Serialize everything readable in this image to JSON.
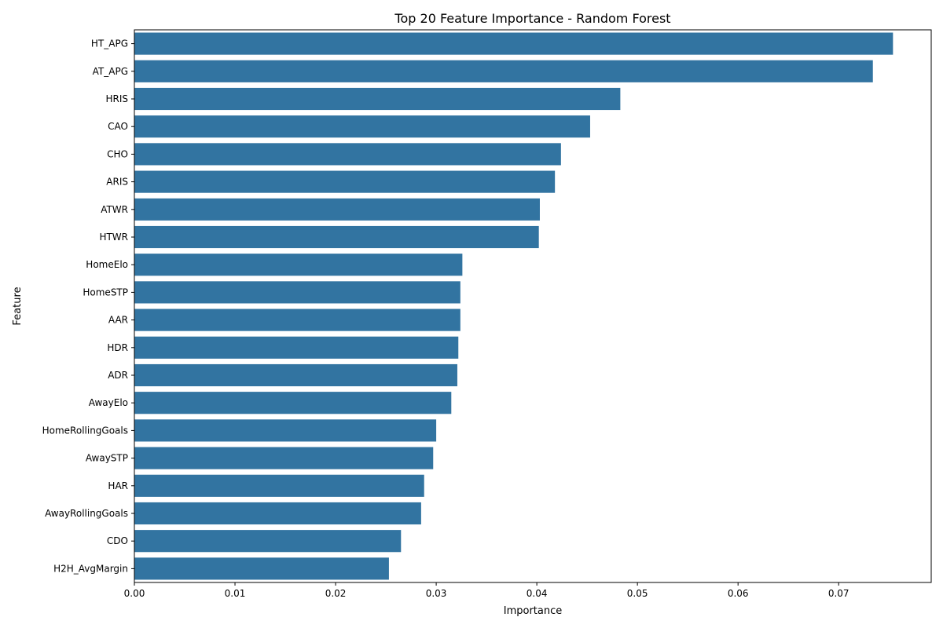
{
  "chart_data": {
    "type": "bar",
    "orientation": "horizontal",
    "title": "Top 20 Feature Importance - Random Forest",
    "xlabel": "Importance",
    "ylabel": "Feature",
    "xlim": [
      0,
      0.0792
    ],
    "xticks": [
      0.0,
      0.01,
      0.02,
      0.03,
      0.04,
      0.05,
      0.06,
      0.07
    ],
    "xtick_labels": [
      "0.00",
      "0.01",
      "0.02",
      "0.03",
      "0.04",
      "0.05",
      "0.06",
      "0.07"
    ],
    "grid": false,
    "bar_color": "#3274a1",
    "categories": [
      "HT_APG",
      "AT_APG",
      "HRIS",
      "CAO",
      "CHO",
      "ARIS",
      "ATWR",
      "HTWR",
      "HomeElo",
      "HomeSTP",
      "AAR",
      "HDR",
      "ADR",
      "AwayElo",
      "HomeRollingGoals",
      "AwaySTP",
      "HAR",
      "AwayRollingGoals",
      "CDO",
      "H2H_AvgMargin"
    ],
    "values": [
      0.0754,
      0.0734,
      0.0483,
      0.0453,
      0.0424,
      0.0418,
      0.0403,
      0.0402,
      0.0326,
      0.0324,
      0.0324,
      0.0322,
      0.0321,
      0.0315,
      0.03,
      0.0297,
      0.0288,
      0.0285,
      0.0265,
      0.0253
    ]
  }
}
